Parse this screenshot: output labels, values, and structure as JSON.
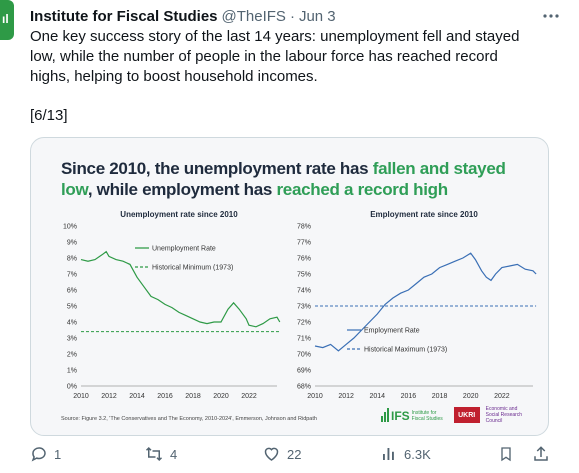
{
  "author": {
    "name": "Institute for Fiscal Studies",
    "handle": "@TheIFS",
    "separator": "·",
    "date": "Jun 3"
  },
  "tweet": {
    "text": "One key success story of the last 14 years: unemployment fell and stayed low, while the number of people in the labour force has reached record highs, helping to boost household incomes.",
    "thread_marker": "[6/13]"
  },
  "media": {
    "headline_1": "Since 2010, the unemployment rate has ",
    "headline_hl1": "fallen and stayed low",
    "headline_2": ", while employment has ",
    "headline_hl2": "reached a record high",
    "source": "Source: Figure 3.2, 'The Conservatives and The Economy, 2010-2024', Emmerson, Johnson and Ridpath",
    "logos": {
      "ifs_word": "IFS",
      "ifs_sub": "Institute for Fiscal Studies",
      "ukri": "UKRI",
      "esrc": "Economic and Social Research Council"
    }
  },
  "chart_data": [
    {
      "type": "line",
      "title": "Unemployment rate since 2010",
      "x_ticks": [
        "2010",
        "2012",
        "2014",
        "2016",
        "2018",
        "2020",
        "2022"
      ],
      "y_ticks": [
        "0%",
        "1%",
        "2%",
        "3%",
        "4%",
        "5%",
        "6%",
        "7%",
        "8%",
        "9%",
        "10%"
      ],
      "xlim": [
        2010,
        2024
      ],
      "ylim": [
        0,
        10
      ],
      "series": [
        {
          "name": "Unemployment Rate",
          "style": "solid",
          "color": "#2e9a46",
          "points": [
            [
              2010,
              7.9
            ],
            [
              2010.5,
              7.8
            ],
            [
              2011,
              7.9
            ],
            [
              2011.5,
              8.2
            ],
            [
              2011.8,
              8.4
            ],
            [
              2012,
              8.1
            ],
            [
              2012.5,
              7.9
            ],
            [
              2013,
              7.8
            ],
            [
              2013.5,
              7.6
            ],
            [
              2014,
              6.8
            ],
            [
              2014.5,
              6.2
            ],
            [
              2015,
              5.6
            ],
            [
              2015.5,
              5.4
            ],
            [
              2016,
              5.1
            ],
            [
              2016.5,
              4.9
            ],
            [
              2017,
              4.6
            ],
            [
              2017.5,
              4.4
            ],
            [
              2018,
              4.2
            ],
            [
              2018.5,
              4.0
            ],
            [
              2019,
              3.9
            ],
            [
              2019.5,
              4.0
            ],
            [
              2020,
              4.0
            ],
            [
              2020.5,
              4.8
            ],
            [
              2020.9,
              5.2
            ],
            [
              2021.3,
              4.8
            ],
            [
              2021.8,
              4.2
            ],
            [
              2022,
              3.8
            ],
            [
              2022.5,
              3.7
            ],
            [
              2023,
              3.9
            ],
            [
              2023.5,
              4.2
            ],
            [
              2024,
              4.3
            ],
            [
              2024.2,
              4.0
            ]
          ]
        },
        {
          "name": "Historical Minimum (1973)",
          "style": "dashed",
          "color": "#2e9a46",
          "points": [
            [
              2010,
              3.4
            ],
            [
              2024.2,
              3.4
            ]
          ]
        }
      ]
    },
    {
      "type": "line",
      "title": "Employment rate since 2010",
      "x_ticks": [
        "2010",
        "2012",
        "2014",
        "2016",
        "2018",
        "2020",
        "2022"
      ],
      "y_ticks": [
        "68%",
        "69%",
        "70%",
        "71%",
        "72%",
        "73%",
        "74%",
        "75%",
        "76%",
        "77%",
        "78%"
      ],
      "xlim": [
        2010,
        2024
      ],
      "ylim": [
        68,
        78
      ],
      "series": [
        {
          "name": "Employment Rate",
          "style": "solid",
          "color": "#3a6fb5",
          "points": [
            [
              2010,
              70.5
            ],
            [
              2010.5,
              70.4
            ],
            [
              2011,
              70.6
            ],
            [
              2011.5,
              70.2
            ],
            [
              2012,
              70.6
            ],
            [
              2012.5,
              71.0
            ],
            [
              2013,
              71.5
            ],
            [
              2013.5,
              72.0
            ],
            [
              2014,
              72.5
            ],
            [
              2014.5,
              73.1
            ],
            [
              2015,
              73.5
            ],
            [
              2015.5,
              73.8
            ],
            [
              2016,
              74.0
            ],
            [
              2016.5,
              74.4
            ],
            [
              2017,
              74.8
            ],
            [
              2017.5,
              75.0
            ],
            [
              2018,
              75.4
            ],
            [
              2018.5,
              75.6
            ],
            [
              2019,
              75.8
            ],
            [
              2019.5,
              76.0
            ],
            [
              2020,
              76.3
            ],
            [
              2020.3,
              75.9
            ],
            [
              2020.7,
              75.2
            ],
            [
              2021,
              74.8
            ],
            [
              2021.3,
              74.6
            ],
            [
              2021.6,
              75.0
            ],
            [
              2022,
              75.4
            ],
            [
              2022.5,
              75.5
            ],
            [
              2023,
              75.6
            ],
            [
              2023.5,
              75.3
            ],
            [
              2024,
              75.2
            ],
            [
              2024.2,
              75.0
            ]
          ]
        },
        {
          "name": "Historical Maximum (1973)",
          "style": "dashed",
          "color": "#3a6fb5",
          "points": [
            [
              2010,
              73.0
            ],
            [
              2024.2,
              73.0
            ]
          ]
        }
      ]
    }
  ],
  "actions": {
    "replies": "1",
    "reposts": "4",
    "likes": "22",
    "views": "6.3K"
  },
  "colors": {
    "ifs_green": "#2e9a46",
    "headline_highlight": "#2f9e57",
    "employment_blue": "#3a6fb5",
    "muted_text": "#536471"
  }
}
